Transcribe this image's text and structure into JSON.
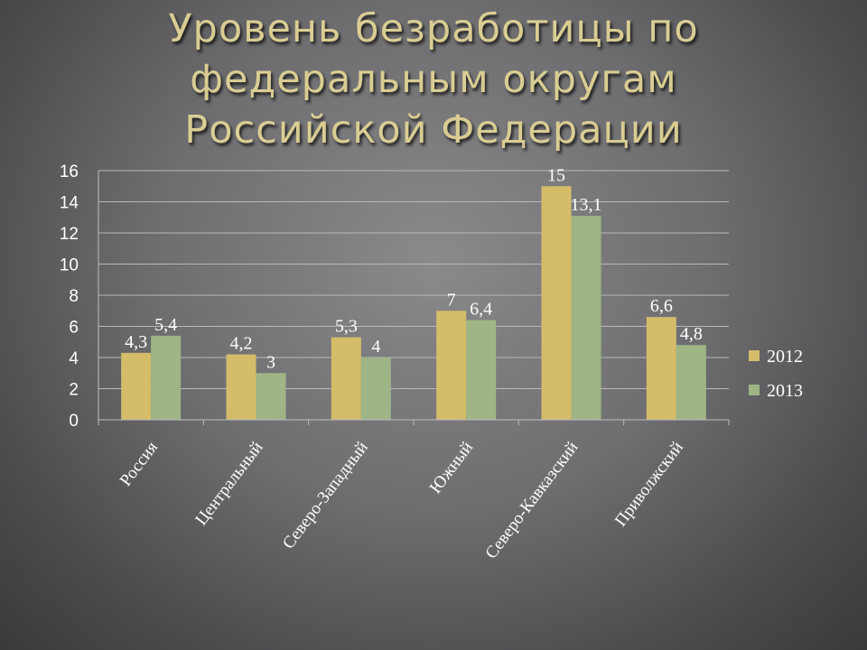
{
  "chart_data": {
    "type": "bar",
    "title_lines": [
      "Уровень безработицы по",
      "федеральным округам",
      "Российской Федерации"
    ],
    "categories": [
      "Россия",
      "Центральный",
      "Северо-Западный",
      "Южный",
      "Северо-Кавказский",
      "Приволжский"
    ],
    "series": [
      {
        "name": "2012",
        "color": "#d4bc69",
        "values": [
          4.3,
          4.2,
          5.3,
          7,
          15,
          6.6
        ],
        "labels": [
          "4,3",
          "4,2",
          "5,3",
          "7",
          "15",
          "6,6"
        ]
      },
      {
        "name": "2013",
        "color": "#9fb585",
        "values": [
          5.4,
          3,
          4,
          6.4,
          13.1,
          4.8
        ],
        "labels": [
          "5,4",
          "3",
          "4",
          "6,4",
          "13,1",
          "4,8"
        ]
      }
    ],
    "ylim": [
      0,
      16
    ],
    "yticks": [
      0,
      2,
      4,
      6,
      8,
      10,
      12,
      14,
      16
    ],
    "grid": true,
    "legend_position": "right"
  }
}
